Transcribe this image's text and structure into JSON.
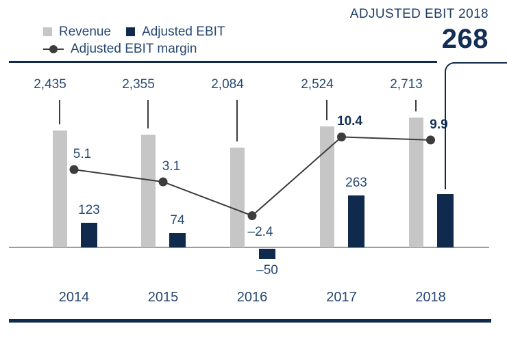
{
  "legend": {
    "revenue_label": "Revenue",
    "ebit_label": "Adjusted EBIT",
    "margin_label": "Adjusted EBIT margin"
  },
  "headline": {
    "title": "ADJUSTED EBIT 2018",
    "value": "268"
  },
  "colors": {
    "revenue_bar": "#C6C6C6",
    "ebit_bar": "#0F2A4C",
    "margin_line": "#3C3C3B",
    "baseline": "#9C9C9B",
    "label_text": "#264872",
    "emphasis_text": "#132E54"
  },
  "chart_data": {
    "type": "bar",
    "subtype": "combo-bar-line",
    "categories": [
      "2014",
      "2015",
      "2016",
      "2017",
      "2018"
    ],
    "series": [
      {
        "name": "Revenue",
        "type": "bar",
        "color": "#C6C6C6",
        "values": [
          2435,
          2355,
          2084,
          2524,
          2713
        ],
        "value_labels": [
          "2,435",
          "2,355",
          "2,084",
          "2,524",
          "2,713"
        ]
      },
      {
        "name": "Adjusted EBIT",
        "type": "bar",
        "color": "#0F2A4C",
        "values": [
          123,
          74,
          -50,
          263,
          268
        ],
        "value_labels": [
          "123",
          "74",
          "–50",
          "263",
          ""
        ]
      },
      {
        "name": "Adjusted EBIT margin",
        "type": "line",
        "color": "#3C3C3B",
        "values": [
          5.1,
          3.1,
          -2.4,
          10.4,
          9.9
        ],
        "value_labels": [
          "5.1",
          "3.1",
          "–2.4",
          "10.4",
          "9.9"
        ],
        "label_positions": [
          "above",
          "above",
          "below",
          "above",
          "above"
        ],
        "label_bold": [
          false,
          false,
          false,
          true,
          true
        ]
      }
    ],
    "highlight": {
      "title": "ADJUSTED EBIT 2018",
      "value": 268,
      "display": "268"
    },
    "legend_position": "top-left",
    "gridlines": false,
    "value_axis_visible": false
  }
}
